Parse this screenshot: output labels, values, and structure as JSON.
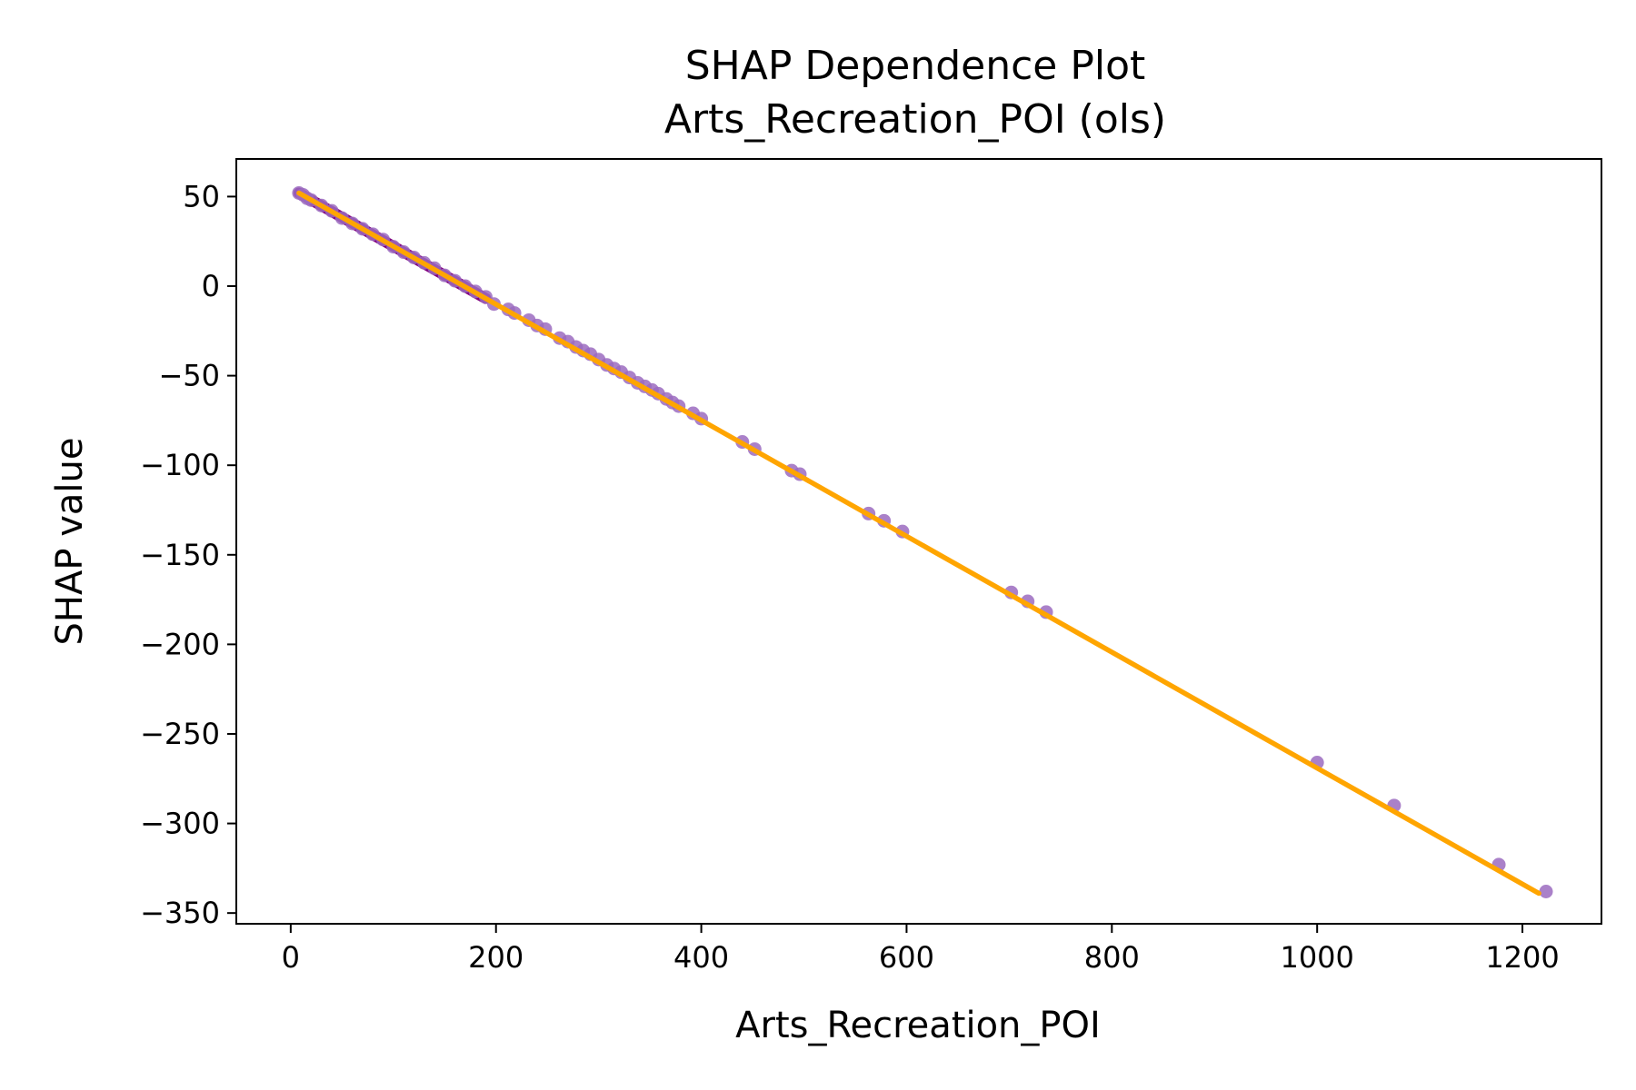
{
  "chart_data": {
    "type": "scatter",
    "title": "SHAP Dependence Plot",
    "subtitle": "Arts_Recreation_POI (ols)",
    "xlabel": "Arts_Recreation_POI",
    "ylabel": "SHAP value",
    "xlim": [
      -53,
      1277
    ],
    "ylim": [
      -356,
      71
    ],
    "xticks": [
      0,
      200,
      400,
      600,
      800,
      1000,
      1200
    ],
    "yticks": [
      50,
      0,
      -50,
      -100,
      -150,
      -200,
      -250,
      -300,
      -350
    ],
    "xtick_labels": [
      "0",
      "200",
      "400",
      "600",
      "800",
      "1000",
      "1200"
    ],
    "ytick_labels": [
      "50",
      "0",
      "−50",
      "−100",
      "−150",
      "−200",
      "−250",
      "−300",
      "−350"
    ],
    "grid": false,
    "legend": false,
    "fit_line": {
      "x": [
        8,
        1216
      ],
      "y": [
        52,
        -339
      ],
      "color": "#ffa500"
    },
    "dense_segment": {
      "x": [
        8,
        190
      ],
      "color": "#800080"
    },
    "series": [
      {
        "color": "#9b6bbf",
        "x": [
          8,
          12,
          16,
          20,
          30,
          40,
          50,
          60,
          70,
          80,
          90,
          100,
          110,
          120,
          130,
          140,
          150,
          160,
          170,
          180,
          190,
          198,
          212,
          218,
          232,
          240,
          248,
          262,
          270,
          278,
          285,
          292,
          300,
          308,
          315,
          322,
          330,
          338,
          345,
          352,
          358,
          366,
          372,
          378,
          392,
          400,
          440,
          452,
          488,
          496,
          563,
          578,
          596,
          702,
          718,
          736,
          1000,
          1075,
          1177,
          1223
        ],
        "y": [
          52,
          51,
          49,
          48,
          45,
          42,
          38,
          35,
          32,
          29,
          26,
          22,
          19,
          16,
          13,
          10,
          6,
          3,
          0,
          -3,
          -6,
          -10,
          -13,
          -15,
          -19,
          -22,
          -24,
          -29,
          -31,
          -34,
          -36,
          -38,
          -41,
          -44,
          -46,
          -48,
          -51,
          -54,
          -56,
          -58,
          -60,
          -63,
          -65,
          -67,
          -71,
          -74,
          -87,
          -91,
          -103,
          -105,
          -127,
          -131,
          -137,
          -171,
          -176,
          -182,
          -266,
          -290,
          -323,
          -338
        ]
      }
    ]
  }
}
